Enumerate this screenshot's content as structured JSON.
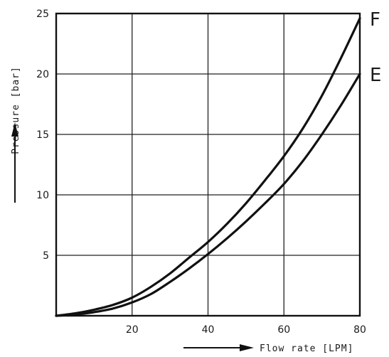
{
  "chart_data": {
    "type": "line",
    "xlabel": "Flow rate [LPM]",
    "ylabel": "Pressure [bar]",
    "xlim": [
      0,
      80
    ],
    "ylim": [
      0,
      25
    ],
    "x_ticks": [
      20,
      40,
      60,
      80
    ],
    "y_ticks": [
      5,
      10,
      15,
      20,
      25
    ],
    "grid": true,
    "x": [
      0,
      5,
      10,
      15,
      20,
      25,
      30,
      35,
      40,
      45,
      50,
      55,
      60,
      65,
      70,
      75,
      80
    ],
    "series": [
      {
        "name": "F",
        "values": [
          0,
          0.2,
          0.5,
          0.9,
          1.5,
          2.4,
          3.5,
          4.8,
          6.1,
          7.6,
          9.3,
          11.2,
          13.2,
          15.5,
          18.2,
          21.3,
          24.6
        ]
      },
      {
        "name": "E",
        "values": [
          0,
          0.1,
          0.3,
          0.6,
          1.1,
          1.8,
          2.8,
          3.9,
          5.1,
          6.4,
          7.8,
          9.3,
          10.9,
          12.8,
          15.0,
          17.4,
          20.0
        ]
      }
    ],
    "colors": {
      "line": "#111111",
      "grid": "#222222",
      "background": "#ffffff"
    }
  }
}
